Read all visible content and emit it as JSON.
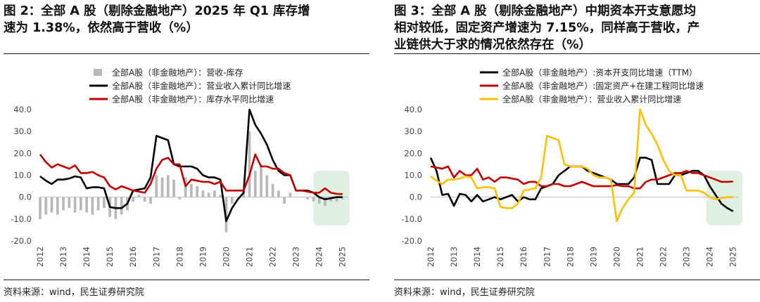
{
  "chart_data": [
    {
      "id": "left",
      "type": "bar+line",
      "title_lines": [
        "图 2：全部 A 股（剔除金融地产）2025 年 Q1 库存增",
        "速为 1.38%，依然高于营收（%）"
      ],
      "source": "资料来源：wind，民生证券研究院",
      "ylim": [
        -20,
        40
      ],
      "yticks": [
        "40.0",
        "30.0",
        "20.0",
        "10.0",
        "0.0",
        "-10.0",
        "-20.0"
      ],
      "xticks": [
        "2012",
        "2013",
        "2014",
        "2015",
        "2016",
        "2017",
        "2018",
        "2019",
        "2020",
        "2021",
        "2022",
        "2023",
        "2024",
        "2025"
      ],
      "xrange": [
        2012,
        2025.25
      ],
      "highlight": {
        "x0": 2023.75,
        "x1": 2025.3,
        "y0": -13,
        "y1": 12,
        "color": "#dff0e2"
      },
      "series": [
        {
          "name": "全部A股（非金融地产）：营收-库存",
          "kind": "bar",
          "color": "#b8b8b8",
          "x": [
            2012.0,
            2012.25,
            2012.5,
            2012.75,
            2013.0,
            2013.25,
            2013.5,
            2013.75,
            2014.0,
            2014.25,
            2014.5,
            2014.75,
            2015.0,
            2015.25,
            2015.5,
            2015.75,
            2016.0,
            2016.25,
            2016.5,
            2016.75,
            2017.0,
            2017.25,
            2017.5,
            2017.75,
            2018.0,
            2018.25,
            2018.5,
            2018.75,
            2019.0,
            2019.25,
            2019.5,
            2019.75,
            2020.0,
            2020.25,
            2020.5,
            2020.75,
            2021.0,
            2021.25,
            2021.5,
            2021.75,
            2022.0,
            2022.25,
            2022.5,
            2022.75,
            2023.0,
            2023.25,
            2023.5,
            2023.75,
            2024.0,
            2024.25,
            2024.5,
            2024.75,
            2025.0
          ],
          "values": [
            -10,
            -8,
            -7,
            -8,
            -6,
            -5,
            -7,
            -6,
            -7,
            -8,
            -6,
            -5,
            -9,
            -10,
            -8,
            -6,
            -2,
            1,
            -2,
            -3,
            10,
            9,
            10,
            8,
            -1,
            9,
            6,
            5,
            3,
            2,
            3,
            1,
            -16,
            -3,
            0,
            3,
            30,
            12,
            15,
            10,
            6,
            3,
            -3,
            2,
            0,
            0,
            -1,
            -2,
            -3,
            -4,
            -2,
            -2,
            -1
          ]
        },
        {
          "name": "全部A股（非金融地产）：营业收入累计同比增速",
          "kind": "line",
          "color": "#000000",
          "x": [
            2012.0,
            2012.25,
            2012.5,
            2012.75,
            2013.0,
            2013.25,
            2013.5,
            2013.75,
            2014.0,
            2014.25,
            2014.5,
            2014.75,
            2015.0,
            2015.25,
            2015.5,
            2015.75,
            2016.0,
            2016.25,
            2016.5,
            2016.75,
            2017.0,
            2017.25,
            2017.5,
            2017.75,
            2018.0,
            2018.25,
            2018.5,
            2018.75,
            2019.0,
            2019.25,
            2019.5,
            2019.75,
            2020.0,
            2020.25,
            2020.5,
            2020.75,
            2021.0,
            2021.25,
            2021.5,
            2021.75,
            2022.0,
            2022.25,
            2022.5,
            2022.75,
            2023.0,
            2023.25,
            2023.5,
            2023.75,
            2024.0,
            2024.25,
            2024.5,
            2024.75,
            2025.0
          ],
          "values": [
            9.5,
            7.5,
            6,
            8,
            8,
            8.5,
            9.5,
            9,
            4,
            4.5,
            4.5,
            4,
            -4.5,
            -5,
            -5,
            -3,
            3,
            3.5,
            4,
            9,
            28,
            27,
            26,
            15,
            14,
            14,
            14,
            13,
            10,
            9,
            9,
            8,
            -11,
            -5,
            -1,
            2,
            40,
            33,
            29,
            24,
            17,
            12,
            10,
            10,
            3,
            3,
            3,
            2,
            0,
            -1,
            -0.5,
            0,
            0
          ]
        },
        {
          "name": "全部A股（非金融地产）：库存水平同比增速",
          "kind": "line",
          "color": "#c00000",
          "x": [
            2012.0,
            2012.25,
            2012.5,
            2012.75,
            2013.0,
            2013.25,
            2013.5,
            2013.75,
            2014.0,
            2014.25,
            2014.5,
            2014.75,
            2015.0,
            2015.25,
            2015.5,
            2015.75,
            2016.0,
            2016.25,
            2016.5,
            2016.75,
            2017.0,
            2017.25,
            2017.5,
            2017.75,
            2018.0,
            2018.25,
            2018.5,
            2018.75,
            2019.0,
            2019.25,
            2019.5,
            2019.75,
            2020.0,
            2020.25,
            2020.5,
            2020.75,
            2021.0,
            2021.25,
            2021.5,
            2021.75,
            2022.0,
            2022.25,
            2022.5,
            2022.75,
            2023.0,
            2023.25,
            2023.5,
            2023.75,
            2024.0,
            2024.25,
            2024.5,
            2024.75,
            2025.0
          ],
          "values": [
            19.5,
            16,
            13.5,
            15,
            14,
            13,
            14.5,
            11,
            11,
            11.5,
            10,
            9,
            5,
            3.5,
            5,
            4,
            3,
            2.5,
            2,
            6,
            13,
            17,
            18,
            15,
            15,
            5,
            8,
            7.5,
            7,
            7,
            6,
            7,
            3,
            3,
            3,
            3,
            10,
            19.5,
            14,
            14,
            13,
            13,
            11,
            10,
            3,
            3,
            2.5,
            2,
            2,
            4,
            2,
            1.5,
            1.38
          ]
        }
      ]
    },
    {
      "id": "right",
      "type": "line",
      "title_lines": [
        "图 3：全部 A 股（剔除金融地产）中期资本开支意愿均",
        "相对较低，固定资产增速为 7.15%，同样高于营收，产",
        "业链供大于求的情况依然存在（%）"
      ],
      "source": "资料来源：wind，民生证券研究院",
      "ylim": [
        -20,
        40
      ],
      "yticks": [
        "40.0",
        "30.0",
        "20.0",
        "10.0",
        "0.0",
        "-10.0",
        "-20.0"
      ],
      "xticks": [
        "2012",
        "2013",
        "2014",
        "2015",
        "2016",
        "2017",
        "2018",
        "2019",
        "2020",
        "2021",
        "2022",
        "2023",
        "2024",
        "2025"
      ],
      "xrange": [
        2012,
        2025.25
      ],
      "highlight": {
        "x0": 2023.85,
        "x1": 2025.4,
        "y0": -13,
        "y1": 12,
        "color": "#dff0e2"
      },
      "series": [
        {
          "name": "全部A股（非金融地产）:资本开支同比增速（TTM）",
          "kind": "line",
          "color": "#000000",
          "x": [
            2012.0,
            2012.25,
            2012.5,
            2012.75,
            2013.0,
            2013.25,
            2013.5,
            2013.75,
            2014.0,
            2014.25,
            2014.5,
            2014.75,
            2015.0,
            2015.25,
            2015.5,
            2015.75,
            2016.0,
            2016.25,
            2016.5,
            2016.75,
            2017.0,
            2017.25,
            2017.5,
            2017.75,
            2018.0,
            2018.25,
            2018.5,
            2018.75,
            2019.0,
            2019.25,
            2019.5,
            2019.75,
            2020.0,
            2020.25,
            2020.5,
            2020.75,
            2021.0,
            2021.25,
            2021.5,
            2021.75,
            2022.0,
            2022.25,
            2022.5,
            2022.75,
            2023.0,
            2023.25,
            2023.5,
            2023.75,
            2024.0,
            2024.25,
            2024.5,
            2024.75,
            2025.0
          ],
          "values": [
            18,
            12,
            1,
            1.5,
            -4,
            1.5,
            1,
            -2,
            1,
            -2,
            -1,
            0,
            -1,
            0,
            1,
            -2,
            0,
            -1,
            -1,
            4,
            5,
            6,
            10,
            12,
            14,
            14,
            14,
            12,
            11,
            10,
            9,
            8,
            6,
            6,
            6,
            9,
            18,
            18,
            17,
            6,
            6,
            6,
            10,
            10,
            11,
            12,
            12,
            10,
            5,
            1,
            -3,
            -5,
            -6.5
          ]
        },
        {
          "name": "全部A股（非金融地产）:固定资产+在建工程同比增速",
          "kind": "line",
          "color": "#c00000",
          "x": [
            2012.0,
            2012.25,
            2012.5,
            2012.75,
            2013.0,
            2013.25,
            2013.5,
            2013.75,
            2014.0,
            2014.25,
            2014.5,
            2014.75,
            2015.0,
            2015.25,
            2015.5,
            2015.75,
            2016.0,
            2016.25,
            2016.5,
            2016.75,
            2017.0,
            2017.25,
            2017.5,
            2017.75,
            2018.0,
            2018.25,
            2018.5,
            2018.75,
            2019.0,
            2019.25,
            2019.5,
            2019.75,
            2020.0,
            2020.25,
            2020.5,
            2020.75,
            2021.0,
            2021.25,
            2021.5,
            2021.75,
            2022.0,
            2022.25,
            2022.5,
            2022.75,
            2023.0,
            2023.25,
            2023.5,
            2023.75,
            2024.0,
            2024.25,
            2024.5,
            2024.75,
            2025.0
          ],
          "values": [
            14,
            13.5,
            13,
            14,
            9,
            12,
            10,
            10,
            13,
            8,
            9,
            7,
            9,
            9,
            8.5,
            8,
            6,
            7,
            7,
            5,
            5,
            6,
            6,
            5,
            5,
            6,
            7,
            6,
            5,
            5,
            5,
            5,
            5.5,
            5,
            5,
            4,
            4,
            7,
            8,
            8,
            9,
            10,
            11,
            11,
            12,
            11,
            11,
            10,
            9,
            8,
            7,
            7,
            7.15
          ]
        },
        {
          "name": "全部A股（非金融地产）：营业收入累计同比增速",
          "kind": "line",
          "color": "#ffc000",
          "x": [
            2012.0,
            2012.25,
            2012.5,
            2012.75,
            2013.0,
            2013.25,
            2013.5,
            2013.75,
            2014.0,
            2014.25,
            2014.5,
            2014.75,
            2015.0,
            2015.25,
            2015.5,
            2015.75,
            2016.0,
            2016.25,
            2016.5,
            2016.75,
            2017.0,
            2017.25,
            2017.5,
            2017.75,
            2018.0,
            2018.25,
            2018.5,
            2018.75,
            2019.0,
            2019.25,
            2019.5,
            2019.75,
            2020.0,
            2020.25,
            2020.5,
            2020.75,
            2021.0,
            2021.25,
            2021.5,
            2021.75,
            2022.0,
            2022.25,
            2022.5,
            2022.75,
            2023.0,
            2023.25,
            2023.5,
            2023.75,
            2024.0,
            2024.25,
            2024.5,
            2024.75,
            2025.0
          ],
          "values": [
            9.5,
            7.5,
            6,
            8,
            8,
            8.5,
            9.5,
            9,
            4,
            4.5,
            4.5,
            4,
            -4.5,
            -5,
            -5,
            -3,
            3,
            3.5,
            4,
            9,
            28,
            27,
            26,
            15,
            14,
            14,
            14,
            13,
            10,
            9,
            9,
            8,
            -11,
            -5,
            -1,
            2,
            40,
            33,
            29,
            24,
            17,
            12,
            10,
            10,
            3,
            3,
            3,
            2,
            0,
            -1,
            -0.5,
            0,
            0
          ]
        }
      ]
    }
  ]
}
